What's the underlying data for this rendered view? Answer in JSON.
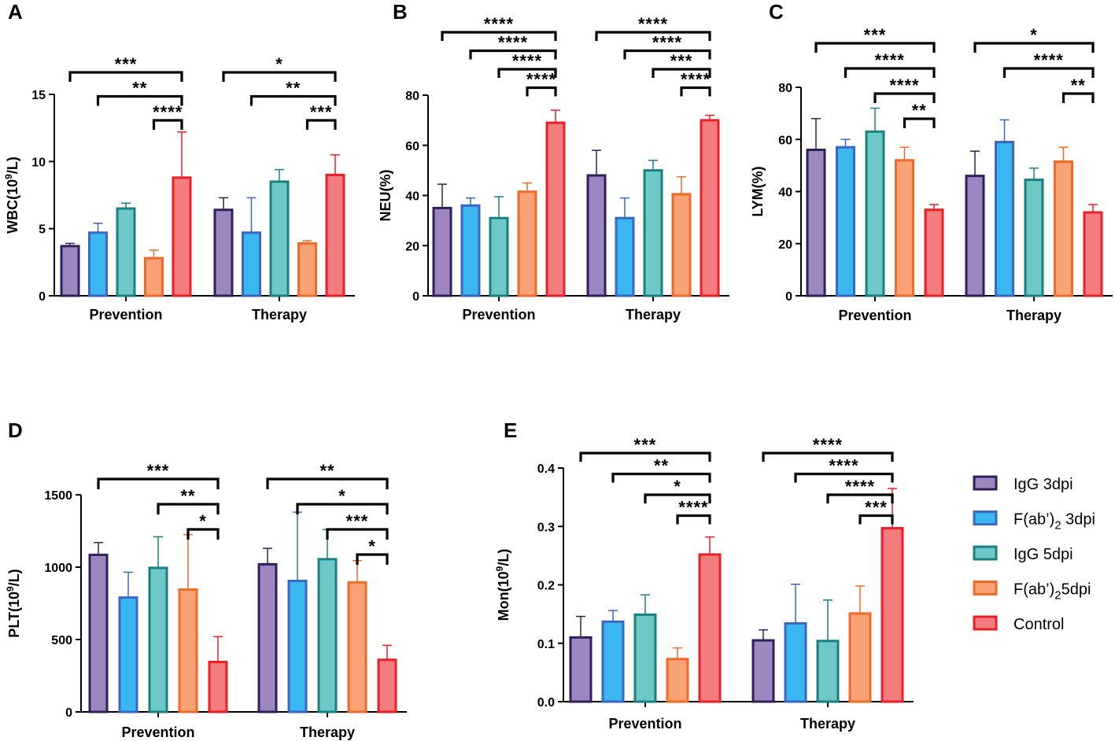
{
  "groups": [
    {
      "key": "igg3",
      "label": "IgG 3dpi",
      "fill": "#9e86c0",
      "stroke": "#2f1f5a"
    },
    {
      "key": "fab3",
      "label": "F(ab')2 3dpi",
      "fill": "#39b7ee",
      "stroke": "#3a66c4"
    },
    {
      "key": "igg5",
      "label": "IgG 5dpi",
      "fill": "#6ec9c6",
      "stroke": "#1a7f80"
    },
    {
      "key": "fab5",
      "label": "F(ab')25dpi",
      "fill": "#f9a276",
      "stroke": "#f06a2a"
    },
    {
      "key": "ctrl",
      "label": "Control",
      "fill": "#f27c7e",
      "stroke": "#ea1f27"
    }
  ],
  "legend": {
    "items": [
      {
        "base": "IgG 3dpi",
        "sub": "",
        "suffix": ""
      },
      {
        "base": "F(ab’)",
        "sub": "2",
        "suffix": " 3dpi"
      },
      {
        "base": "IgG 5dpi",
        "sub": "",
        "suffix": ""
      },
      {
        "base": "F(ab’)",
        "sub": "2",
        "suffix": "5dpi"
      },
      {
        "base": "Control",
        "sub": "",
        "suffix": ""
      }
    ]
  },
  "chart_data": [
    {
      "id": "A",
      "type": "bar",
      "letter": "A",
      "ylabel": {
        "base": "WBC(10",
        "sup": "9",
        "tail": "/L)"
      },
      "ylim": [
        0,
        15
      ],
      "yticks": [
        0,
        5,
        10,
        15
      ],
      "categories": [
        "Prevention",
        "Therapy"
      ],
      "series": [
        {
          "name": "IgG 3dpi",
          "values": [
            3.7,
            6.4
          ],
          "errors": [
            0.2,
            0.9
          ]
        },
        {
          "name": "F(ab')2 3dpi",
          "values": [
            4.7,
            4.7
          ],
          "errors": [
            0.7,
            2.6
          ]
        },
        {
          "name": "IgG 5dpi",
          "values": [
            6.5,
            8.5
          ],
          "errors": [
            0.4,
            0.9
          ]
        },
        {
          "name": "F(ab')2 5dpi",
          "values": [
            2.8,
            3.9
          ],
          "errors": [
            0.6,
            0.2
          ]
        },
        {
          "name": "Control",
          "values": [
            8.8,
            9.0
          ],
          "errors": [
            3.4,
            1.5
          ]
        }
      ],
      "significance": [
        {
          "cat": 0,
          "from": 0,
          "to": 4,
          "label": "***"
        },
        {
          "cat": 0,
          "from": 1,
          "to": 4,
          "label": "**"
        },
        {
          "cat": 0,
          "from": 3,
          "to": 4,
          "label": "****"
        },
        {
          "cat": 1,
          "from": 0,
          "to": 4,
          "label": "*"
        },
        {
          "cat": 1,
          "from": 1,
          "to": 4,
          "label": "**"
        },
        {
          "cat": 1,
          "from": 3,
          "to": 4,
          "label": "***"
        }
      ]
    },
    {
      "id": "B",
      "type": "bar",
      "letter": "B",
      "ylabel": {
        "base": "NEU(%)",
        "sup": "",
        "tail": ""
      },
      "ylim": [
        0,
        80
      ],
      "yticks": [
        0,
        20,
        40,
        60,
        80
      ],
      "categories": [
        "Prevention",
        "Therapy"
      ],
      "series": [
        {
          "name": "IgG 3dpi",
          "values": [
            35,
            48
          ],
          "errors": [
            9.5,
            10
          ]
        },
        {
          "name": "F(ab')2 3dpi",
          "values": [
            36,
            31
          ],
          "errors": [
            3,
            8
          ]
        },
        {
          "name": "IgG 5dpi",
          "values": [
            31,
            50
          ],
          "errors": [
            8.5,
            4
          ]
        },
        {
          "name": "F(ab')2 5dpi",
          "values": [
            41.5,
            40.5
          ],
          "errors": [
            3.5,
            7
          ]
        },
        {
          "name": "Control",
          "values": [
            69,
            70
          ],
          "errors": [
            5,
            2
          ]
        }
      ],
      "significance": [
        {
          "cat": 0,
          "from": 0,
          "to": 4,
          "label": "****"
        },
        {
          "cat": 0,
          "from": 1,
          "to": 4,
          "label": "****"
        },
        {
          "cat": 0,
          "from": 2,
          "to": 4,
          "label": "****"
        },
        {
          "cat": 0,
          "from": 3,
          "to": 4,
          "label": "****"
        },
        {
          "cat": 1,
          "from": 0,
          "to": 4,
          "label": "****"
        },
        {
          "cat": 1,
          "from": 1,
          "to": 4,
          "label": "****"
        },
        {
          "cat": 1,
          "from": 2,
          "to": 4,
          "label": "***"
        },
        {
          "cat": 1,
          "from": 3,
          "to": 4,
          "label": "****"
        }
      ]
    },
    {
      "id": "C",
      "type": "bar",
      "letter": "C",
      "ylabel": {
        "base": "LYM(%)",
        "sup": "",
        "tail": ""
      },
      "ylim": [
        0,
        80
      ],
      "yticks": [
        0,
        20,
        40,
        60,
        80
      ],
      "categories": [
        "Prevention",
        "Therapy"
      ],
      "series": [
        {
          "name": "IgG 3dpi",
          "values": [
            56,
            46
          ],
          "errors": [
            12,
            9.5
          ]
        },
        {
          "name": "F(ab')2 3dpi",
          "values": [
            57,
            59
          ],
          "errors": [
            3,
            8.5
          ]
        },
        {
          "name": "IgG 5dpi",
          "values": [
            63,
            44.5
          ],
          "errors": [
            9,
            4.5
          ]
        },
        {
          "name": "F(ab')2 5dpi",
          "values": [
            52,
            51.5
          ],
          "errors": [
            5,
            5.5
          ]
        },
        {
          "name": "Control",
          "values": [
            33,
            32
          ],
          "errors": [
            2,
            3
          ]
        }
      ],
      "significance": [
        {
          "cat": 0,
          "from": 0,
          "to": 4,
          "label": "***"
        },
        {
          "cat": 0,
          "from": 1,
          "to": 4,
          "label": "****"
        },
        {
          "cat": 0,
          "from": 2,
          "to": 4,
          "label": "****"
        },
        {
          "cat": 0,
          "from": 3,
          "to": 4,
          "label": "**"
        },
        {
          "cat": 1,
          "from": 0,
          "to": 4,
          "label": "*"
        },
        {
          "cat": 1,
          "from": 1,
          "to": 4,
          "label": "****"
        },
        {
          "cat": 1,
          "from": 3,
          "to": 4,
          "label": "**"
        }
      ]
    },
    {
      "id": "D",
      "type": "bar",
      "letter": "D",
      "ylabel": {
        "base": "PLT(10",
        "sup": "9",
        "tail": "/L)"
      },
      "ylim": [
        0,
        1500
      ],
      "yticks": [
        0,
        500,
        1000,
        1500
      ],
      "categories": [
        "Prevention",
        "Therapy"
      ],
      "series": [
        {
          "name": "IgG 3dpi",
          "values": [
            1085,
            1020
          ],
          "errors": [
            85,
            110
          ]
        },
        {
          "name": "F(ab')2 3dpi",
          "values": [
            790,
            905
          ],
          "errors": [
            175,
            475
          ]
        },
        {
          "name": "IgG 5dpi",
          "values": [
            995,
            1055
          ],
          "errors": [
            215,
            205
          ]
        },
        {
          "name": "F(ab')2 5dpi",
          "values": [
            845,
            895
          ],
          "errors": [
            380,
            150
          ]
        },
        {
          "name": "Control",
          "values": [
            345,
            360
          ],
          "errors": [
            175,
            100
          ]
        }
      ],
      "significance": [
        {
          "cat": 0,
          "from": 0,
          "to": 4,
          "label": "***"
        },
        {
          "cat": 0,
          "from": 2,
          "to": 4,
          "label": "**"
        },
        {
          "cat": 0,
          "from": 3,
          "to": 4,
          "label": "*"
        },
        {
          "cat": 1,
          "from": 0,
          "to": 4,
          "label": "**"
        },
        {
          "cat": 1,
          "from": 1,
          "to": 4,
          "label": "*"
        },
        {
          "cat": 1,
          "from": 2,
          "to": 4,
          "label": "***"
        },
        {
          "cat": 1,
          "from": 3,
          "to": 4,
          "label": "*"
        }
      ]
    },
    {
      "id": "E",
      "type": "bar",
      "letter": "E",
      "ylabel": {
        "base": "Mon(10",
        "sup": "9",
        "tail": "/L)"
      },
      "ylim": [
        0,
        0.4
      ],
      "yticks": [
        0.0,
        0.1,
        0.2,
        0.3,
        0.4
      ],
      "ytick_labels": [
        "0.0",
        "0.1",
        "0.2",
        "0.3",
        "0.4"
      ],
      "categories": [
        "Prevention",
        "Therapy"
      ],
      "series": [
        {
          "name": "IgG 3dpi",
          "values": [
            0.11,
            0.105
          ],
          "errors": [
            0.036,
            0.018
          ]
        },
        {
          "name": "F(ab')2 3dpi",
          "values": [
            0.137,
            0.134
          ],
          "errors": [
            0.019,
            0.067
          ]
        },
        {
          "name": "IgG 5dpi",
          "values": [
            0.149,
            0.104
          ],
          "errors": [
            0.034,
            0.07
          ]
        },
        {
          "name": "F(ab')2 5dpi",
          "values": [
            0.073,
            0.151
          ],
          "errors": [
            0.019,
            0.047
          ]
        },
        {
          "name": "Control",
          "values": [
            0.252,
            0.297
          ],
          "errors": [
            0.03,
            0.068
          ]
        }
      ],
      "significance": [
        {
          "cat": 0,
          "from": 0,
          "to": 4,
          "label": "***"
        },
        {
          "cat": 0,
          "from": 1,
          "to": 4,
          "label": "**"
        },
        {
          "cat": 0,
          "from": 2,
          "to": 4,
          "label": "*"
        },
        {
          "cat": 0,
          "from": 3,
          "to": 4,
          "label": "****"
        },
        {
          "cat": 1,
          "from": 0,
          "to": 4,
          "label": "****"
        },
        {
          "cat": 1,
          "from": 1,
          "to": 4,
          "label": "****"
        },
        {
          "cat": 1,
          "from": 2,
          "to": 4,
          "label": "****"
        },
        {
          "cat": 1,
          "from": 3,
          "to": 4,
          "label": "***"
        }
      ]
    }
  ]
}
